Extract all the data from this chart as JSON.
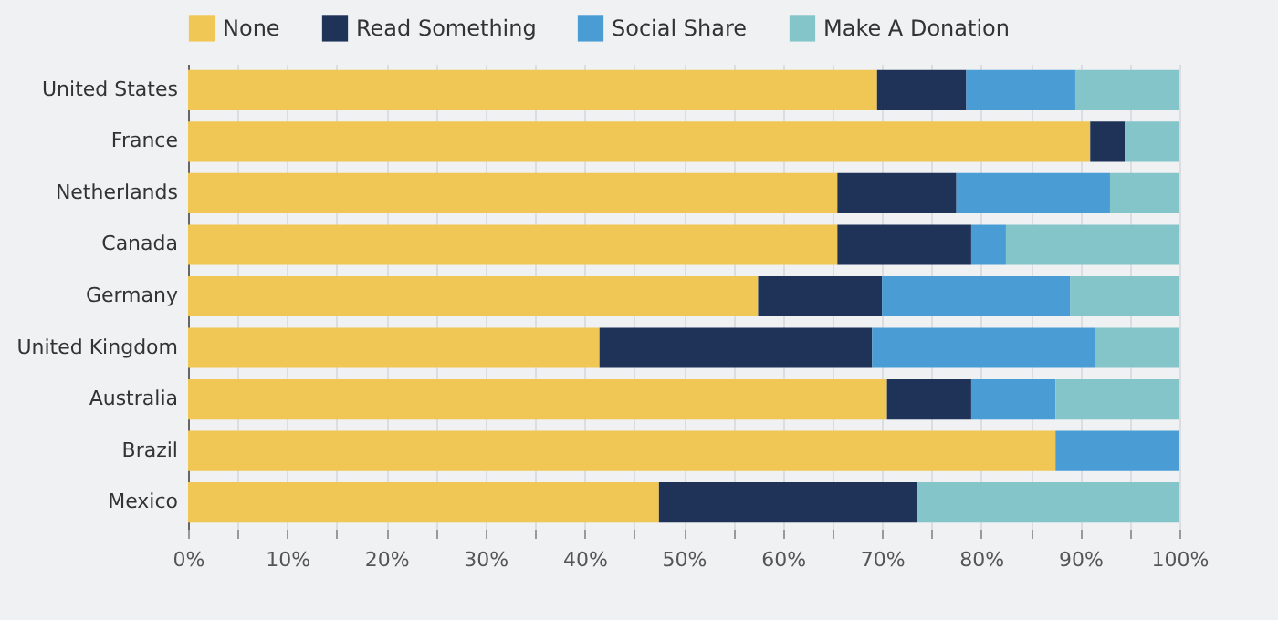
{
  "chart_data": {
    "type": "bar",
    "orientation": "horizontal",
    "stacked": true,
    "categories": [
      "United States",
      "France",
      "Netherlands",
      "Canada",
      "Germany",
      "United Kingdom",
      "Australia",
      "Brazil",
      "Mexico"
    ],
    "series": [
      {
        "name": "None",
        "color": "#f0c755",
        "values": [
          69.5,
          91,
          65.5,
          65.5,
          57.5,
          41.5,
          70.5,
          87.5,
          47.5
        ]
      },
      {
        "name": "Read Something",
        "color": "#1f3358",
        "values": [
          9,
          3.5,
          12,
          13.5,
          12.5,
          27.5,
          8.5,
          0,
          26
        ]
      },
      {
        "name": "Social Share",
        "color": "#4a9dd4",
        "values": [
          11,
          0,
          15.5,
          3.5,
          19,
          22.5,
          8.5,
          12.5,
          0
        ]
      },
      {
        "name": "Make A Donation",
        "color": "#83c5c9",
        "values": [
          10.5,
          5.5,
          7,
          17.5,
          11,
          8.5,
          12.5,
          0,
          26.5
        ]
      }
    ],
    "xlim": [
      0,
      100
    ],
    "xticks": [
      {
        "value": 0,
        "label": "0%"
      },
      {
        "value": 5,
        "label": null
      },
      {
        "value": 10,
        "label": "10%"
      },
      {
        "value": 15,
        "label": null
      },
      {
        "value": 20,
        "label": "20%"
      },
      {
        "value": 25,
        "label": null
      },
      {
        "value": 30,
        "label": "30%"
      },
      {
        "value": 35,
        "label": null
      },
      {
        "value": 40,
        "label": "40%"
      },
      {
        "value": 45,
        "label": null
      },
      {
        "value": 50,
        "label": "50%"
      },
      {
        "value": 55,
        "label": null
      },
      {
        "value": 60,
        "label": "60%"
      },
      {
        "value": 65,
        "label": null
      },
      {
        "value": 70,
        "label": "70%"
      },
      {
        "value": 75,
        "label": null
      },
      {
        "value": 80,
        "label": "80%"
      },
      {
        "value": 85,
        "label": null
      },
      {
        "value": 90,
        "label": "90%"
      },
      {
        "value": 95,
        "label": null
      },
      {
        "value": 100,
        "label": "100%"
      }
    ],
    "grid": "x",
    "legend": "top"
  }
}
